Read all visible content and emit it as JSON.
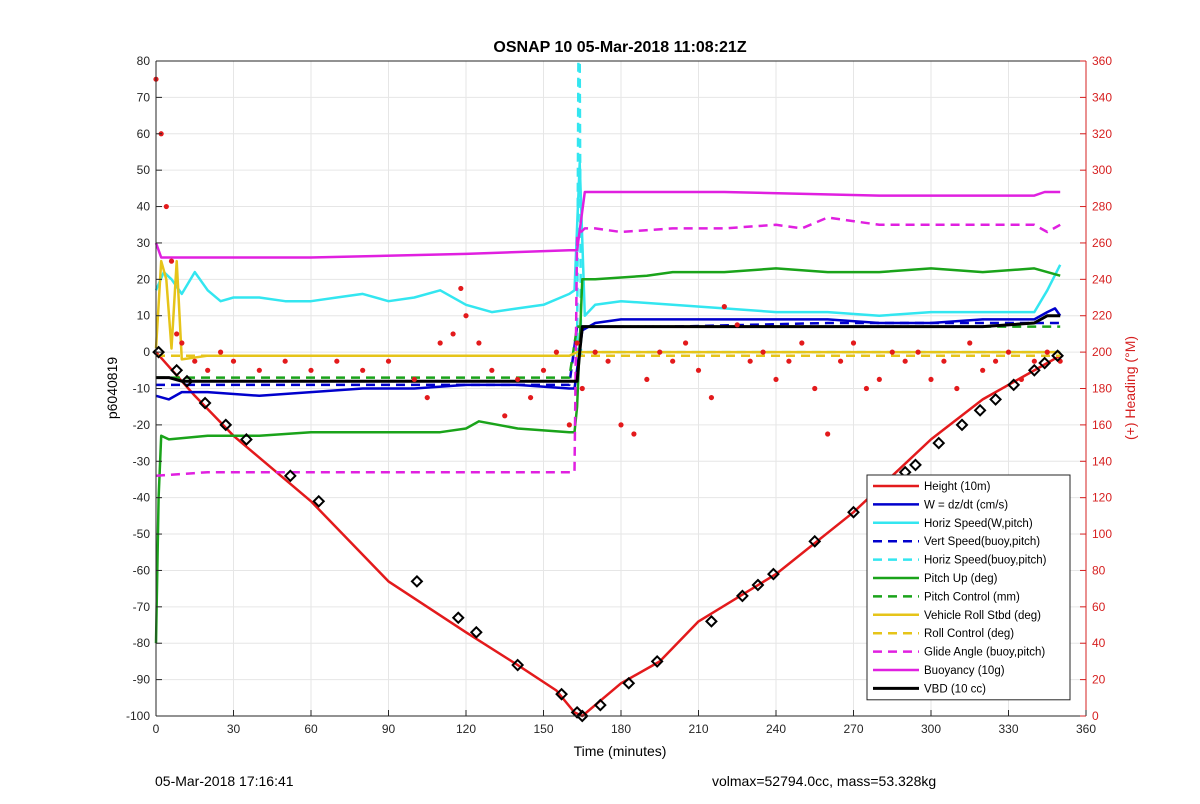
{
  "chart_data": {
    "type": "line",
    "title": "OSNAP 10 05-Mar-2018 11:08:21Z",
    "xlabel": "Time (minutes)",
    "ylabel_left": "p6040819",
    "ylabel_right": "(+) Heading (°M)",
    "xlim": [
      0,
      360
    ],
    "ylim_left": [
      -100,
      80
    ],
    "ylim_right": [
      0,
      360
    ],
    "x_ticks": [
      0,
      30,
      60,
      90,
      120,
      150,
      180,
      210,
      240,
      270,
      300,
      330,
      360
    ],
    "y_ticks_left": [
      80,
      70,
      60,
      50,
      40,
      30,
      20,
      10,
      0,
      -10,
      -20,
      -30,
      -40,
      -50,
      -60,
      -70,
      -80,
      -90,
      -100
    ],
    "y_ticks_right": [
      360,
      340,
      320,
      300,
      280,
      260,
      240,
      220,
      200,
      180,
      160,
      140,
      120,
      100,
      80,
      60,
      40,
      20,
      0
    ],
    "grid": true,
    "legend_position": "bottom-right",
    "series": [
      {
        "name": "Height (10m)",
        "color": "#e31a1c",
        "style": "solid",
        "width": 2.5,
        "x": [
          0,
          15,
          30,
          60,
          90,
          120,
          140,
          155,
          162,
          165,
          170,
          180,
          195,
          210,
          240,
          270,
          300,
          320,
          335,
          345,
          350
        ],
        "y": [
          0,
          -12,
          -23,
          -41,
          -63,
          -77,
          -86,
          -93,
          -99,
          -100,
          -97,
          -91,
          -85,
          -74,
          -61,
          -44,
          -24,
          -13,
          -7,
          -3,
          -1
        ]
      },
      {
        "name": "W = dz/dt (cm/s)",
        "color": "#0000cc",
        "style": "solid",
        "width": 2.5,
        "x": [
          0,
          5,
          10,
          20,
          40,
          60,
          80,
          100,
          120,
          140,
          160,
          162,
          165,
          170,
          180,
          200,
          220,
          240,
          260,
          280,
          300,
          320,
          340,
          345,
          348,
          350
        ],
        "y": [
          -12,
          -13,
          -11,
          -11,
          -12,
          -11,
          -10,
          -10,
          -9,
          -9,
          -10,
          -10,
          6,
          8,
          9,
          9,
          9,
          9,
          9,
          8,
          8,
          9,
          9,
          11,
          12,
          10
        ]
      },
      {
        "name": "Horiz Speed(W,pitch)",
        "color": "#33e6f0",
        "style": "solid",
        "width": 2.5,
        "x": [
          0,
          3,
          6,
          10,
          15,
          20,
          25,
          30,
          40,
          50,
          60,
          70,
          80,
          90,
          100,
          110,
          120,
          130,
          140,
          150,
          160,
          162,
          164,
          166,
          170,
          180,
          200,
          220,
          240,
          260,
          280,
          300,
          320,
          340,
          345,
          350
        ],
        "y": [
          17,
          22,
          20,
          16,
          22,
          17,
          14,
          15,
          15,
          14,
          14,
          15,
          16,
          14,
          15,
          17,
          13,
          11,
          12,
          13,
          16,
          17,
          52,
          10,
          13,
          14,
          13,
          12,
          11,
          11,
          10,
          11,
          11,
          11,
          17,
          24
        ]
      },
      {
        "name": "Vert Speed(buoy,pitch)",
        "color": "#0000cc",
        "style": "dashed",
        "width": 2.5,
        "x": [
          0,
          60,
          120,
          160,
          163,
          200,
          260,
          320,
          350
        ],
        "y": [
          -9,
          -9,
          -9,
          -9,
          7,
          7,
          8,
          8,
          8
        ]
      },
      {
        "name": "Horiz Speed(buoy,pitch)",
        "color": "#33e6f0",
        "style": "dashed",
        "width": 2.5,
        "x": [
          0,
          163,
          163.5,
          164,
          164.5,
          165,
          350
        ],
        "y": [
          -1,
          -1,
          80,
          80,
          -1,
          0,
          0
        ]
      },
      {
        "name": "Pitch Up (deg)",
        "color": "#1aa31a",
        "style": "solid",
        "width": 2.5,
        "x": [
          0,
          1,
          2,
          5,
          20,
          40,
          60,
          80,
          100,
          110,
          120,
          125,
          140,
          160,
          162,
          163,
          165,
          170,
          190,
          200,
          210,
          220,
          240,
          260,
          280,
          300,
          320,
          340,
          350
        ],
        "y": [
          -80,
          -40,
          -23,
          -24,
          -23,
          -23,
          -22,
          -22,
          -22,
          -22,
          -21,
          -19,
          -21,
          -22,
          -22,
          -15,
          20,
          20,
          21,
          22,
          22,
          22,
          23,
          22,
          22,
          23,
          22,
          23,
          21
        ]
      },
      {
        "name": "Pitch Control (mm)",
        "color": "#1aa31a",
        "style": "dashed",
        "width": 2.5,
        "x": [
          0,
          160,
          163,
          350
        ],
        "y": [
          -7,
          -7,
          7,
          7
        ]
      },
      {
        "name": "Vehicle Roll Stbd (deg)",
        "color": "#e6c419",
        "style": "solid",
        "width": 2.5,
        "x": [
          0,
          2,
          4,
          6,
          8,
          10,
          20,
          30,
          40,
          60,
          80,
          100,
          120,
          140,
          160,
          163,
          166,
          180,
          200,
          220,
          240,
          260,
          280,
          300,
          320,
          340,
          350
        ],
        "y": [
          1,
          25,
          20,
          1,
          25,
          -2,
          -1,
          -1,
          -1,
          -1,
          -1,
          -1,
          -1,
          -1,
          -1,
          0,
          0,
          0,
          0,
          0,
          0,
          0,
          0,
          0,
          0,
          0,
          0
        ]
      },
      {
        "name": "Roll Control (deg)",
        "color": "#e6c419",
        "style": "dashed",
        "width": 2.5,
        "x": [
          0,
          350
        ],
        "y": [
          -1,
          -1
        ]
      },
      {
        "name": "Glide Angle (buoy,pitch)",
        "color": "#e020e0",
        "style": "dashed",
        "width": 2.5,
        "x": [
          0,
          20,
          40,
          60,
          80,
          100,
          120,
          140,
          160,
          162,
          163,
          166,
          170,
          180,
          200,
          220,
          240,
          250,
          260,
          280,
          300,
          320,
          340,
          345,
          350
        ],
        "y": [
          -34,
          -33,
          -33,
          -33,
          -33,
          -33,
          -33,
          -33,
          -33,
          -33,
          32,
          34,
          34,
          33,
          34,
          34,
          35,
          34,
          37,
          35,
          35,
          35,
          35,
          33,
          35
        ]
      },
      {
        "name": "Buoyancy (10g)",
        "color": "#e020e0",
        "style": "solid",
        "width": 2.5,
        "x": [
          0,
          2,
          60,
          120,
          160,
          163,
          166,
          220,
          280,
          340,
          344,
          350
        ],
        "y": [
          30,
          26,
          26,
          27,
          28,
          28,
          44,
          44,
          43,
          43,
          44,
          44
        ]
      },
      {
        "name": "VBD (10 cc)",
        "color": "#000000",
        "style": "solid",
        "width": 3,
        "x": [
          0,
          5,
          10,
          40,
          80,
          120,
          163,
          164,
          165,
          200,
          260,
          300,
          320,
          340,
          345,
          350
        ],
        "y": [
          -7,
          -7,
          -8,
          -8,
          -8,
          -8,
          -8,
          0,
          7,
          7,
          7,
          7,
          7,
          8,
          10,
          10
        ]
      }
    ],
    "heading_series": {
      "color": "#e31a1c",
      "axis": "right",
      "x": [
        0,
        2,
        4,
        6,
        8,
        10,
        15,
        20,
        25,
        30,
        40,
        50,
        60,
        70,
        80,
        90,
        100,
        105,
        110,
        115,
        118,
        120,
        125,
        130,
        135,
        140,
        145,
        150,
        155,
        160,
        163,
        165,
        170,
        175,
        180,
        185,
        190,
        195,
        200,
        205,
        210,
        215,
        220,
        225,
        230,
        235,
        240,
        245,
        250,
        255,
        260,
        265,
        270,
        275,
        280,
        285,
        290,
        295,
        300,
        305,
        310,
        315,
        320,
        325,
        330,
        335,
        340,
        345,
        350
      ],
      "y": [
        350,
        320,
        280,
        250,
        210,
        205,
        195,
        190,
        200,
        195,
        190,
        195,
        190,
        195,
        190,
        195,
        185,
        175,
        205,
        210,
        235,
        220,
        205,
        190,
        165,
        185,
        175,
        190,
        200,
        160,
        205,
        180,
        200,
        195,
        160,
        155,
        185,
        200,
        195,
        205,
        190,
        175,
        225,
        215,
        195,
        200,
        185,
        195,
        205,
        180,
        155,
        195,
        205,
        180,
        185,
        200,
        195,
        200,
        185,
        195,
        180,
        205,
        190,
        195,
        200,
        185,
        195,
        200,
        195
      ]
    },
    "markers": {
      "color": "#000000",
      "shape": "diamond",
      "x": [
        1,
        8,
        12,
        19,
        27,
        35,
        52,
        63,
        101,
        117,
        124,
        140,
        157,
        163,
        165,
        172,
        183,
        194,
        215,
        227,
        233,
        239,
        255,
        270,
        278,
        290,
        294,
        303,
        312,
        319,
        325,
        332,
        340,
        344,
        349
      ],
      "y": [
        0,
        -5,
        -8,
        -14,
        -20,
        -24,
        -34,
        -41,
        -63,
        -73,
        -77,
        -86,
        -94,
        -99,
        -100,
        -97,
        -91,
        -85,
        -74,
        -67,
        -64,
        -61,
        -52,
        -44,
        -40,
        -33,
        -31,
        -25,
        -20,
        -16,
        -13,
        -9,
        -5,
        -3,
        -1
      ]
    }
  },
  "footer": {
    "left_text": "05-Mar-2018 17:16:41",
    "right_text": "volmax=52794.0cc, mass=53.328kg"
  }
}
